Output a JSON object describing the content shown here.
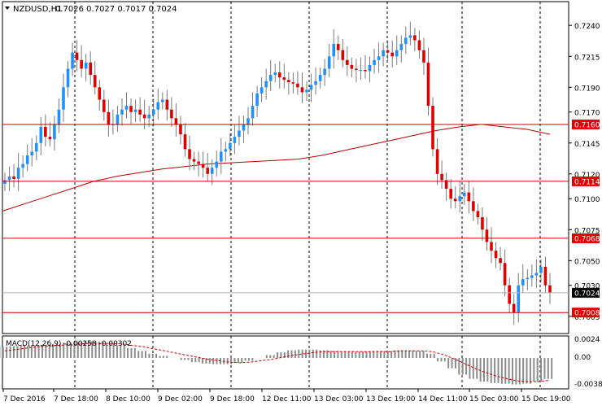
{
  "header": {
    "symbol": "NZDUSD,H1",
    "ohlc": "0.7026 0.7027 0.7017 0.7024"
  },
  "macd": {
    "label": "MACD(12,26,9) -0.00258 -0.00302",
    "scale_labels": [
      "0.0024",
      "0.00",
      "-0.00384"
    ]
  },
  "colors": {
    "background": "#ffffff",
    "bull": "#1e90ff",
    "bear": "#e00000",
    "wick": "#7a7a7a",
    "level_line": "#cc0000",
    "ma_line": "#c00000",
    "grid": "#000000",
    "hist": "#8c8c8c",
    "signal": "#d00000",
    "price_tag_bg": "#e00000",
    "current_tag_bg": "#000000"
  },
  "chart_data": {
    "type": "candlestick",
    "title": "",
    "price_axis_ticks": [
      "0.7240",
      "0.7215",
      "0.7190",
      "0.7170",
      "0.7145",
      "0.7120",
      "0.7100",
      "0.7075",
      "0.7050",
      "0.7030",
      "0.7005"
    ],
    "price_range": [
      0.6995,
      0.725
    ],
    "time_axis_labels": [
      "7 Dec 2016",
      "7 Dec 18:00",
      "8 Dec 10:00",
      "9 Dec 02:00",
      "9 Dec 18:00",
      "12 Dec 11:00",
      "13 Dec 03:00",
      "13 Dec 19:00",
      "14 Dec 11:00",
      "15 Dec 03:00",
      "15 Dec 19:00"
    ],
    "horizontal_levels": [
      {
        "price": 0.716,
        "label": "0.7160"
      },
      {
        "price": 0.7114,
        "label": "0.7114"
      },
      {
        "price": 0.7068,
        "label": "0.7068"
      },
      {
        "price": 0.7008,
        "label": "0.7008"
      }
    ],
    "current_price": {
      "price": 0.7024,
      "label": "0.7024"
    },
    "close_path": [
      0.7115,
      0.7118,
      0.7116,
      0.7125,
      0.7128,
      0.7135,
      0.7138,
      0.7145,
      0.7158,
      0.715,
      0.7148,
      0.716,
      0.7172,
      0.719,
      0.7205,
      0.7218,
      0.7212,
      0.7205,
      0.721,
      0.72,
      0.719,
      0.718,
      0.717,
      0.716,
      0.716,
      0.7168,
      0.7172,
      0.7175,
      0.717,
      0.7172,
      0.7168,
      0.7165,
      0.7168,
      0.7172,
      0.7178,
      0.718,
      0.7172,
      0.7165,
      0.716,
      0.7152,
      0.714,
      0.7132,
      0.713,
      0.7128,
      0.7125,
      0.712,
      0.7125,
      0.713,
      0.7138,
      0.714,
      0.7145,
      0.715,
      0.7155,
      0.716,
      0.7165,
      0.7175,
      0.7185,
      0.719,
      0.7195,
      0.72,
      0.7202,
      0.7198,
      0.7196,
      0.7194,
      0.7193,
      0.719,
      0.7186,
      0.7188,
      0.7192,
      0.7195,
      0.72,
      0.7205,
      0.7215,
      0.7225,
      0.722,
      0.7212,
      0.7208,
      0.7205,
      0.7204,
      0.7204,
      0.7203,
      0.7208,
      0.7212,
      0.7215,
      0.722,
      0.7218,
      0.7215,
      0.722,
      0.7225,
      0.723,
      0.7232,
      0.7228,
      0.722,
      0.721,
      0.7175,
      0.714,
      0.712,
      0.7115,
      0.7108,
      0.71,
      0.7098,
      0.7102,
      0.7105,
      0.7098,
      0.709,
      0.7085,
      0.7075,
      0.7065,
      0.7058,
      0.7052,
      0.7048,
      0.703,
      0.7015,
      0.7008,
      0.703,
      0.7035,
      0.7036,
      0.7038,
      0.704,
      0.7045,
      0.703,
      0.7024
    ],
    "moving_average": [
      0.709,
      0.7096,
      0.7102,
      0.7108,
      0.7114,
      0.7118,
      0.7121,
      0.7124,
      0.7126,
      0.7128,
      0.7129,
      0.713,
      0.7131,
      0.7132,
      0.7135,
      0.7139,
      0.7143,
      0.7147,
      0.7151,
      0.7155,
      0.7158,
      0.716,
      0.7158,
      0.7156,
      0.7152
    ],
    "macd_histogram": [
      0.0016,
      0.0017,
      0.0018,
      0.0018,
      0.0019,
      0.002,
      0.0022,
      0.0023,
      0.0024,
      0.0023,
      0.0021,
      0.0018,
      0.0014,
      0.001,
      0.0006,
      0.0003,
      0.0,
      -0.0003,
      -0.0006,
      -0.0008,
      -0.0009,
      -0.0009,
      -0.0007,
      -0.0004,
      0.0,
      0.0004,
      0.0008,
      0.0011,
      0.0012,
      0.0012,
      0.0011,
      0.001,
      0.0009,
      0.0009,
      0.0009,
      0.001,
      0.001,
      0.0011,
      0.0011,
      0.001,
      0.0006,
      -0.0005,
      -0.0015,
      -0.0024,
      -0.003,
      -0.0034,
      -0.0036,
      -0.0037,
      -0.0038,
      -0.0037,
      -0.0034,
      -0.003
    ],
    "macd_signal": [
      0.001,
      0.0012,
      0.0014,
      0.0016,
      0.0017,
      0.0018,
      0.0019,
      0.002,
      0.0021,
      0.0021,
      0.0021,
      0.002,
      0.0018,
      0.0016,
      0.0013,
      0.001,
      0.0007,
      0.0004,
      0.0001,
      -0.0002,
      -0.0004,
      -0.0006,
      -0.0007,
      -0.0006,
      -0.0004,
      -0.0002,
      0.0001,
      0.0004,
      0.0006,
      0.0008,
      0.0009,
      0.0009,
      0.0009,
      0.0009,
      0.0009,
      0.0009,
      0.0009,
      0.001,
      0.001,
      0.001,
      0.0009,
      0.0005,
      -0.0001,
      -0.0008,
      -0.0015,
      -0.0021,
      -0.0026,
      -0.003,
      -0.0033,
      -0.0034,
      -0.0034,
      -0.0032
    ],
    "macd_range": [
      -0.0042,
      0.0028
    ]
  }
}
